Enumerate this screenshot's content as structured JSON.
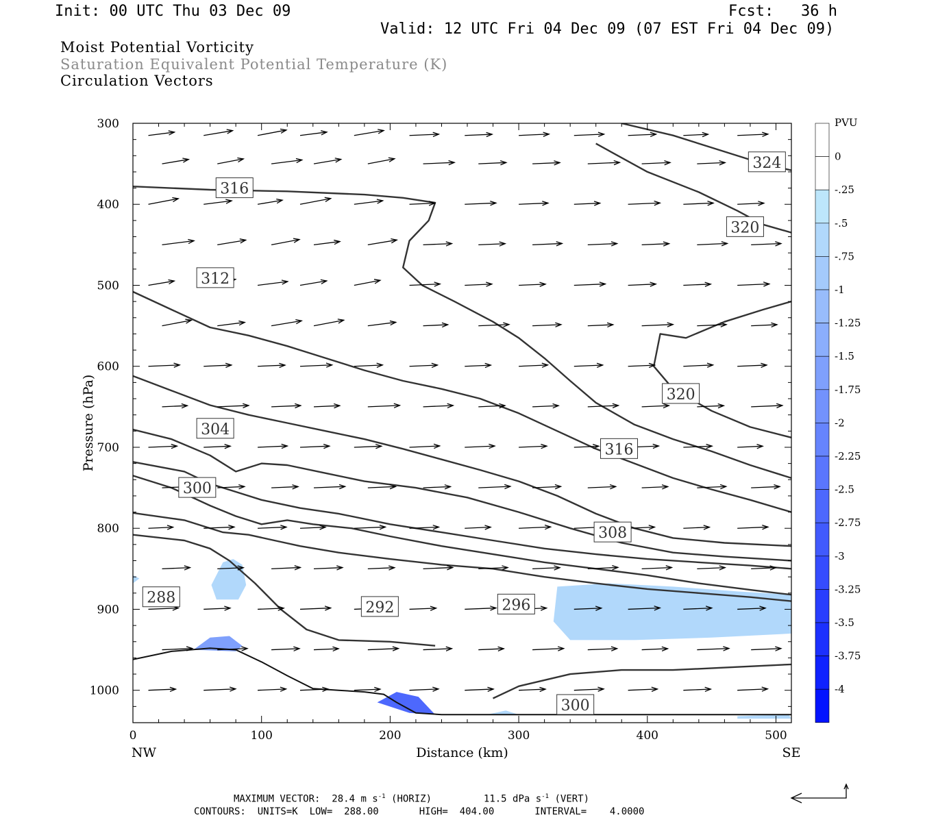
{
  "header": {
    "init": "Init: 00 UTC Thu 03 Dec 09",
    "fcst": "Fcst:   36 h",
    "valid": "Valid: 12 UTC Fri 04 Dec 09 (07 EST Fri 04 Dec 09)"
  },
  "titles": {
    "line1": "Moist Potential Vorticity",
    "line2": "Saturation Equivalent Potential Temperature (K)",
    "line3": "Circulation Vectors"
  },
  "colors": {
    "contour": "#333333",
    "vector": "#000000",
    "pv_light": "#bde6fb",
    "pv_strong": "#2020ff"
  },
  "chart_data": {
    "type": "cross-section",
    "xlabel": "Distance (km)",
    "ylabel": "Pressure (hPa)",
    "xlim": [
      0,
      512
    ],
    "ylim": [
      300,
      1040
    ],
    "y_log": false,
    "x_ticks": [
      0,
      100,
      200,
      300,
      400,
      500
    ],
    "y_ticks": [
      300,
      400,
      500,
      600,
      700,
      800,
      900,
      1000
    ],
    "endpoint_labels": {
      "left": "NW",
      "right": "SE"
    },
    "colorbar": {
      "title": "PVU",
      "labels": [
        "0",
        "-.25",
        "-.5",
        "-.75",
        "-1",
        "-1.25",
        "-1.5",
        "-1.75",
        "-2",
        "-2.25",
        "-2.5",
        "-2.75",
        "-3",
        "-3.25",
        "-3.5",
        "-3.75",
        "-4"
      ],
      "colors": [
        "#ffffff",
        "#ffffff",
        "#bde6fb",
        "#b1d8fb",
        "#a4cafb",
        "#98bcfb",
        "#8baefc",
        "#7fa0fc",
        "#7392fc",
        "#6684fd",
        "#5a76fd",
        "#4d68fd",
        "#415afd",
        "#354cfe",
        "#283efe",
        "#1c30fe",
        "#0f22ff",
        "#0314ff"
      ]
    },
    "contours": [
      {
        "label": "288",
        "label_at": [
          22,
          885
        ],
        "points": [
          [
            0,
            808
          ],
          [
            40,
            815
          ],
          [
            60,
            825
          ],
          [
            75,
            840
          ],
          [
            95,
            868
          ],
          [
            115,
            900
          ],
          [
            135,
            925
          ],
          [
            160,
            938
          ],
          [
            200,
            940
          ],
          [
            235,
            945
          ]
        ]
      },
      {
        "label": "292",
        "label_at": [
          192,
          897
        ],
        "points": [
          [
            0,
            781
          ],
          [
            40,
            790
          ],
          [
            70,
            805
          ],
          [
            90,
            808
          ],
          [
            110,
            815
          ],
          [
            130,
            822
          ],
          [
            160,
            830
          ],
          [
            200,
            838
          ],
          [
            240,
            845
          ],
          [
            280,
            850
          ],
          [
            320,
            860
          ],
          [
            360,
            868
          ],
          [
            400,
            875
          ],
          [
            440,
            880
          ],
          [
            480,
            885
          ],
          [
            512,
            890
          ]
        ]
      },
      {
        "label": "296",
        "label_at": [
          298,
          894
        ],
        "points": [
          [
            0,
            735
          ],
          [
            30,
            750
          ],
          [
            60,
            772
          ],
          [
            80,
            785
          ],
          [
            100,
            795
          ],
          [
            120,
            790
          ],
          [
            140,
            795
          ],
          [
            170,
            800
          ],
          [
            200,
            810
          ],
          [
            240,
            822
          ],
          [
            280,
            832
          ],
          [
            320,
            842
          ],
          [
            360,
            850
          ],
          [
            400,
            858
          ],
          [
            440,
            868
          ],
          [
            480,
            876
          ],
          [
            512,
            882
          ]
        ]
      },
      {
        "label": "300",
        "label_at": [
          50,
          750
        ],
        "points": [
          [
            0,
            718
          ],
          [
            40,
            730
          ],
          [
            60,
            745
          ],
          [
            80,
            755
          ],
          [
            100,
            765
          ],
          [
            130,
            775
          ],
          [
            160,
            782
          ],
          [
            200,
            795
          ],
          [
            240,
            805
          ],
          [
            280,
            815
          ],
          [
            320,
            825
          ],
          [
            360,
            832
          ],
          [
            400,
            838
          ],
          [
            440,
            842
          ],
          [
            480,
            846
          ],
          [
            512,
            850
          ]
        ]
      },
      {
        "label": "304",
        "label_at": [
          64,
          677
        ],
        "points": [
          [
            0,
            678
          ],
          [
            30,
            690
          ],
          [
            60,
            710
          ],
          [
            80,
            730
          ],
          [
            100,
            720
          ],
          [
            120,
            722
          ],
          [
            150,
            732
          ],
          [
            180,
            742
          ],
          [
            220,
            750
          ],
          [
            260,
            762
          ],
          [
            300,
            780
          ],
          [
            340,
            800
          ],
          [
            380,
            818
          ],
          [
            420,
            830
          ],
          [
            460,
            835
          ],
          [
            512,
            840
          ]
        ]
      },
      {
        "label": "308",
        "label_at": [
          373,
          805
        ],
        "points": [
          [
            0,
            612
          ],
          [
            30,
            630
          ],
          [
            60,
            648
          ],
          [
            90,
            660
          ],
          [
            120,
            670
          ],
          [
            150,
            680
          ],
          [
            180,
            690
          ],
          [
            210,
            702
          ],
          [
            240,
            715
          ],
          [
            270,
            728
          ],
          [
            300,
            742
          ],
          [
            330,
            760
          ],
          [
            360,
            782
          ],
          [
            390,
            800
          ],
          [
            420,
            812
          ],
          [
            460,
            818
          ],
          [
            512,
            822
          ]
        ]
      },
      {
        "label": "312",
        "label_at": [
          64,
          491
        ],
        "points": [
          [
            0,
            508
          ],
          [
            30,
            530
          ],
          [
            60,
            552
          ],
          [
            90,
            562
          ],
          [
            120,
            575
          ],
          [
            150,
            590
          ],
          [
            180,
            605
          ],
          [
            210,
            618
          ],
          [
            240,
            628
          ],
          [
            270,
            640
          ],
          [
            300,
            658
          ],
          [
            330,
            680
          ],
          [
            360,
            702
          ],
          [
            390,
            720
          ],
          [
            420,
            738
          ],
          [
            450,
            752
          ],
          [
            480,
            765
          ],
          [
            512,
            780
          ]
        ]
      },
      {
        "label": "316",
        "label_at": [
          378,
          702
        ],
        "points": [
          [
            0,
            378
          ],
          [
            60,
            382
          ],
          [
            120,
            384
          ],
          [
            180,
            388
          ],
          [
            210,
            392
          ],
          [
            235,
            398
          ],
          [
            230,
            420
          ],
          [
            215,
            445
          ],
          [
            210,
            478
          ],
          [
            225,
            500
          ],
          [
            250,
            520
          ],
          [
            280,
            545
          ],
          [
            300,
            565
          ],
          [
            320,
            590
          ],
          [
            340,
            618
          ],
          [
            360,
            645
          ],
          [
            390,
            672
          ],
          [
            420,
            690
          ],
          [
            450,
            705
          ],
          [
            480,
            722
          ],
          [
            512,
            738
          ]
        ]
      },
      {
        "label": "316",
        "label_at": [
          79,
          380
        ],
        "points": []
      },
      {
        "label": "320",
        "label_at": [
          426,
          634
        ],
        "points": [
          [
            512,
            520
          ],
          [
            490,
            530
          ],
          [
            460,
            545
          ],
          [
            430,
            565
          ],
          [
            410,
            560
          ],
          [
            405,
            600
          ],
          [
            420,
            628
          ],
          [
            450,
            655
          ],
          [
            480,
            675
          ],
          [
            512,
            688
          ]
        ]
      },
      {
        "label": "320",
        "label_at": [
          476,
          428
        ],
        "points": [
          [
            360,
            325
          ],
          [
            400,
            360
          ],
          [
            440,
            385
          ],
          [
            470,
            408
          ],
          [
            490,
            425
          ],
          [
            512,
            435
          ]
        ]
      },
      {
        "label": "324",
        "label_at": [
          493,
          348
        ],
        "points": [
          [
            380,
            300
          ],
          [
            420,
            315
          ],
          [
            460,
            335
          ],
          [
            490,
            350
          ],
          [
            512,
            358
          ]
        ]
      },
      {
        "label": "300",
        "label_at": [
          344,
          1018
        ],
        "points": [
          [
            280,
            1010
          ],
          [
            300,
            995
          ],
          [
            340,
            980
          ],
          [
            380,
            975
          ],
          [
            420,
            975
          ],
          [
            460,
            972
          ],
          [
            512,
            968
          ]
        ]
      }
    ],
    "pv_regions": [
      {
        "level": "-.5",
        "points": [
          [
            330,
            872
          ],
          [
            370,
            868
          ],
          [
            420,
            872
          ],
          [
            470,
            878
          ],
          [
            512,
            882
          ],
          [
            512,
            930
          ],
          [
            450,
            935
          ],
          [
            390,
            938
          ],
          [
            340,
            938
          ],
          [
            327,
            915
          ]
        ]
      },
      {
        "level": "-.5",
        "points": [
          [
            70,
            842
          ],
          [
            78,
            838
          ],
          [
            85,
            845
          ],
          [
            88,
            870
          ],
          [
            82,
            888
          ],
          [
            65,
            888
          ],
          [
            61,
            870
          ]
        ]
      },
      {
        "level": "-.5",
        "points": [
          [
            0,
            858
          ],
          [
            5,
            862
          ],
          [
            0,
            868
          ]
        ]
      },
      {
        "level": "-.5",
        "points": [
          [
            10,
            876
          ],
          [
            25,
            875
          ],
          [
            20,
            882
          ],
          [
            12,
            882
          ]
        ]
      },
      {
        "level": "-1.5",
        "points": [
          [
            47,
            950
          ],
          [
            60,
            935
          ],
          [
            75,
            933
          ],
          [
            85,
            945
          ],
          [
            80,
            952
          ]
        ]
      },
      {
        "level": "-2.5",
        "points": [
          [
            190,
            1015
          ],
          [
            205,
            1002
          ],
          [
            222,
            1008
          ],
          [
            235,
            1030
          ],
          [
            215,
            1028
          ]
        ]
      },
      {
        "level": "-.5",
        "points": [
          [
            275,
            1030
          ],
          [
            290,
            1025
          ],
          [
            300,
            1030
          ]
        ]
      },
      {
        "level": "-.5",
        "points": [
          [
            470,
            1032
          ],
          [
            510,
            1030
          ],
          [
            512,
            1035
          ],
          [
            470,
            1035
          ]
        ]
      }
    ],
    "terrain": [
      [
        0,
        962
      ],
      [
        30,
        952
      ],
      [
        60,
        948
      ],
      [
        80,
        950
      ],
      [
        100,
        965
      ],
      [
        120,
        982
      ],
      [
        140,
        998
      ],
      [
        160,
        1000
      ],
      [
        180,
        1002
      ],
      [
        195,
        1005
      ],
      [
        205,
        1015
      ],
      [
        220,
        1028
      ],
      [
        240,
        1030
      ],
      [
        280,
        1030
      ],
      [
        340,
        1030
      ],
      [
        400,
        1030
      ],
      [
        512,
        1030
      ]
    ],
    "vectors": {
      "x": [
        12,
        55,
        97,
        130,
        172,
        215,
        258,
        300,
        343,
        385,
        428,
        470
      ],
      "p": [
        315,
        350,
        400,
        450,
        500,
        550,
        600,
        650,
        700,
        750,
        800,
        850,
        900,
        950,
        1000
      ],
      "u": 1.0,
      "v": [
        [
          0.95,
          0.2
        ],
        [
          0.9,
          0.25
        ],
        [
          0.95,
          0.3
        ]
      ]
    },
    "footer_vector": {
      "horiz": 28.4,
      "vert": 11.5
    }
  },
  "footer": {
    "vector_label": "MAXIMUM VECTOR:",
    "horiz_value": "28.4 m s",
    "horiz_unit": "(HORIZ)",
    "vert_value": "11.5 dPa s",
    "vert_unit": "(VERT)",
    "exp": "-1",
    "contours_line": "CONTOURS:  UNITS=K  LOW=  288.00       HIGH=  404.00       INTERVAL=    4.0000"
  }
}
